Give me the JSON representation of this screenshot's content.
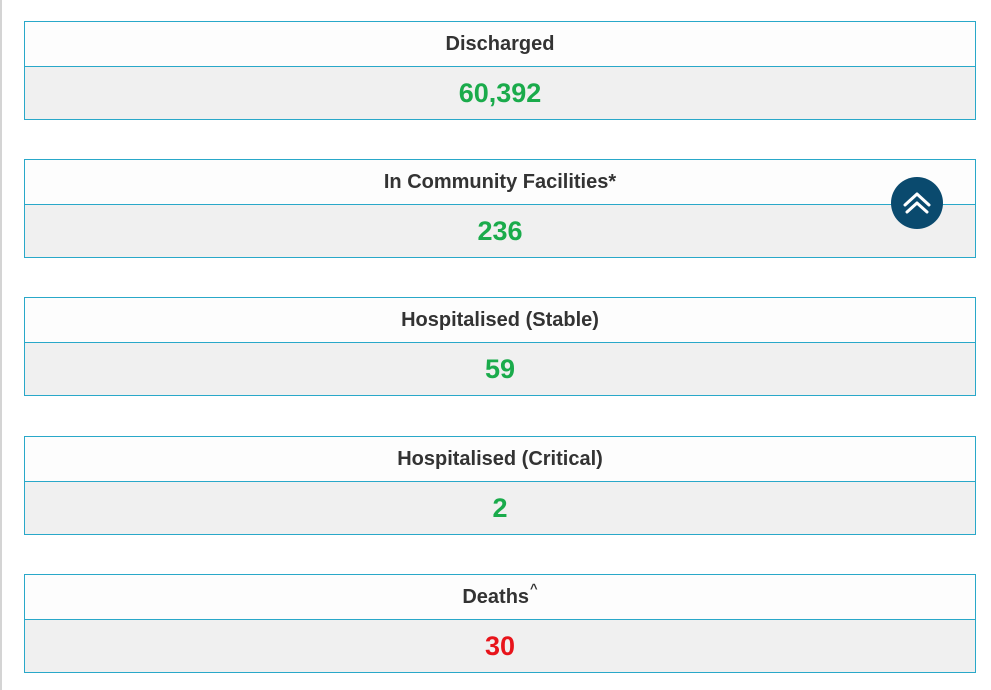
{
  "stats": [
    {
      "label": "Discharged",
      "superscript": "",
      "value": "60,392",
      "color": "#1aab4b"
    },
    {
      "label": "In Community Facilities*",
      "superscript": "",
      "value": "236",
      "color": "#1aab4b"
    },
    {
      "label": "Hospitalised (Stable)",
      "superscript": "",
      "value": "59",
      "color": "#1aab4b"
    },
    {
      "label": "Hospitalised (Critical)",
      "superscript": "",
      "value": "2",
      "color": "#1aab4b"
    },
    {
      "label": "Deaths",
      "superscript": "^",
      "value": "30",
      "color": "#e8141b"
    }
  ],
  "back_to_top": {
    "icon": "double-chevron-up-icon",
    "color": "#0a4a6e"
  }
}
